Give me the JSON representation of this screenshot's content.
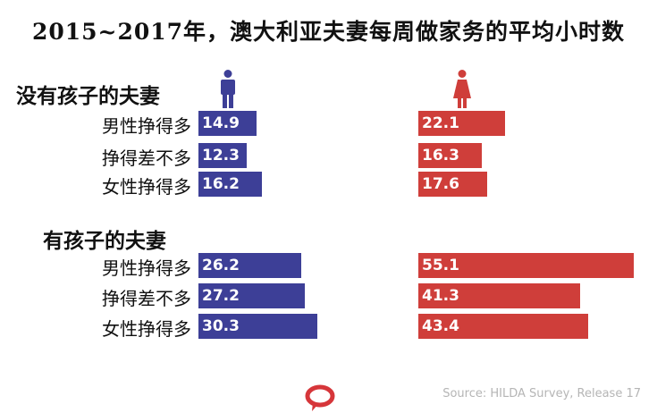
{
  "colors": {
    "men": "#3d3f97",
    "women": "#cf3e3a",
    "logo": "#d6363a"
  },
  "icons": {
    "men": "man-icon",
    "women": "woman-icon",
    "logo": "speech-bubble-icon"
  },
  "chart_data": {
    "type": "bar",
    "orientation": "horizontal",
    "title": "2015~2017年，澳大利亚夫妻每周做家务的平均小时数",
    "unit": "",
    "source": "Source: HILDA Survey, Release 17",
    "series_order": [
      "men",
      "women"
    ],
    "xlim": [
      0,
      60
    ],
    "groups": [
      {
        "name": "没有孩子的夫妻",
        "categories": [
          "男性挣得多",
          "挣得差不多",
          "女性挣得多"
        ],
        "men": [
          14.9,
          12.3,
          16.2
        ],
        "women": [
          22.1,
          16.3,
          17.6
        ]
      },
      {
        "name": "有孩子的夫妻",
        "categories": [
          "男性挣得多",
          "挣得差不多",
          "女性挣得多"
        ],
        "men": [
          26.2,
          27.2,
          30.3
        ],
        "women": [
          55.1,
          41.3,
          43.4
        ]
      }
    ]
  }
}
